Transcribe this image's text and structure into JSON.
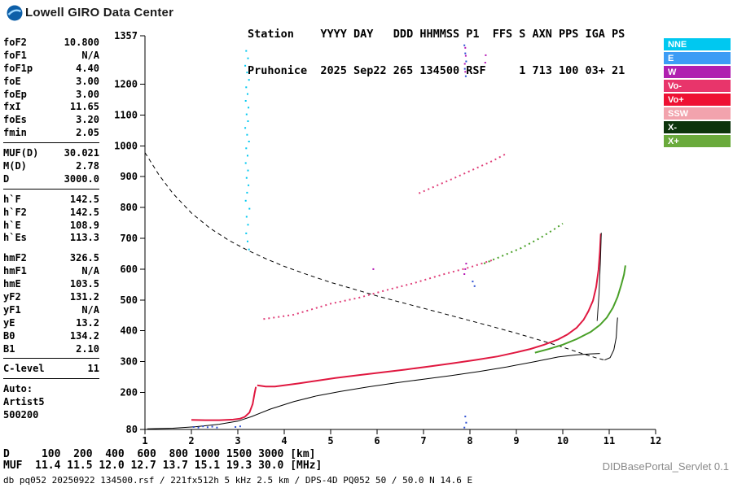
{
  "header": {
    "brand": "Lowell GIRO Data Center"
  },
  "station_block": {
    "line1": "Station    YYYY DAY   DDD HHMMSS P1  FFS S AXN PPS IGA PS",
    "line2": "Pruhonice  2025 Sep22 265 134500 RSF     1 713 100 03+ 21"
  },
  "parameters": {
    "rows": [
      {
        "label": "foF2",
        "value": "10.800"
      },
      {
        "label": "foF1",
        "value": "N/A"
      },
      {
        "label": "foF1p",
        "value": "4.40"
      },
      {
        "label": "foE",
        "value": "3.00"
      },
      {
        "label": "foEp",
        "value": "3.00"
      },
      {
        "label": "fxI",
        "value": "11.65"
      },
      {
        "label": "foEs",
        "value": "3.20"
      },
      {
        "label": "fmin",
        "value": "2.05"
      },
      {
        "sep": true
      },
      {
        "label": "MUF(D)",
        "value": "30.021"
      },
      {
        "label": "M(D)",
        "value": "2.78"
      },
      {
        "label": "D",
        "value": "3000.0"
      },
      {
        "sep": true
      },
      {
        "label": "h`F",
        "value": "142.5"
      },
      {
        "label": "h`F2",
        "value": "142.5"
      },
      {
        "label": "h`E",
        "value": "108.9"
      },
      {
        "label": "h`Es",
        "value": "113.3"
      },
      {
        "gap": true
      },
      {
        "label": "hmF2",
        "value": "326.5"
      },
      {
        "label": "hmF1",
        "value": "N/A"
      },
      {
        "label": "hmE",
        "value": "103.5"
      },
      {
        "label": "yF2",
        "value": "131.2"
      },
      {
        "label": "yF1",
        "value": "N/A"
      },
      {
        "label": "yE",
        "value": "13.2"
      },
      {
        "label": "B0",
        "value": "134.2"
      },
      {
        "label": "B1",
        "value": "2.10"
      },
      {
        "sep": true
      },
      {
        "label": "C-level",
        "value": "11"
      },
      {
        "sep": true
      },
      {
        "label": "Auto:",
        "value": ""
      },
      {
        "label": "Artist5",
        "value": ""
      },
      {
        "label": "500200",
        "value": ""
      }
    ]
  },
  "legend": {
    "items": [
      {
        "label": "NNE",
        "color": "#00c8f0"
      },
      {
        "label": "E",
        "color": "#3c9cf5"
      },
      {
        "label": "W",
        "color": "#b01fb0"
      },
      {
        "label": "Vo-",
        "color": "#e8356b"
      },
      {
        "label": "Vo+",
        "color": "#ee1133"
      },
      {
        "label": "SSW",
        "color": "#f2a3ad"
      },
      {
        "label": "X-",
        "color": "#0c340c"
      },
      {
        "label": "X+",
        "color": "#6aaa3c"
      }
    ]
  },
  "footer": {
    "d_line": "D     100  200  400  600  800 1000 1500 3000 [km]",
    "muf_line": "MUF  11.4 11.5 12.0 12.7 13.7 15.1 19.3 30.0 [MHz]",
    "source_line": "db pq052 20250922 134500.rsf / 221fx512h 5 kHz 2.5 km / DPS-4D PQ052 50 / 50.0 N 14.6 E",
    "servlet": "DIDBasePortal_Servlet 0.1"
  },
  "chart_data": {
    "type": "scatter",
    "title": "Pruhonice ionogram 2025 Sep22 134500",
    "x_unit": "MHz",
    "y_unit": "km",
    "xlim": [
      1,
      12
    ],
    "ylim": [
      80,
      1357
    ],
    "x_ticks": [
      1,
      2,
      3,
      4,
      5,
      6,
      7,
      8,
      9,
      10,
      11,
      12
    ],
    "y_ticks": [
      80,
      200,
      300,
      400,
      500,
      600,
      700,
      800,
      900,
      1000,
      1100,
      1200,
      1357
    ],
    "grid": false,
    "legend_position": "right",
    "lines": [
      {
        "name": "transmission-curve",
        "color": "#000000",
        "width": 1,
        "dash": "5 4",
        "points": [
          [
            1.0,
            978
          ],
          [
            1.3,
            906
          ],
          [
            1.6,
            846
          ],
          [
            2.0,
            782
          ],
          [
            2.4,
            733
          ],
          [
            2.8,
            694
          ],
          [
            3.2,
            662
          ],
          [
            3.6,
            634
          ],
          [
            4.0,
            609
          ],
          [
            4.5,
            582
          ],
          [
            5.0,
            557
          ],
          [
            5.5,
            535
          ],
          [
            6.0,
            513
          ],
          [
            6.5,
            493
          ],
          [
            7.0,
            473
          ],
          [
            7.5,
            453
          ],
          [
            8.0,
            433
          ],
          [
            8.5,
            413
          ],
          [
            9.0,
            392
          ],
          [
            9.5,
            370
          ],
          [
            10.0,
            347
          ],
          [
            10.4,
            327
          ],
          [
            10.7,
            313
          ],
          [
            10.9,
            305
          ]
        ]
      },
      {
        "name": "transmission-curve-tip",
        "color": "#000000",
        "width": 1,
        "points": [
          [
            10.9,
            305
          ],
          [
            11.02,
            313
          ],
          [
            11.1,
            338
          ],
          [
            11.15,
            378
          ],
          [
            11.17,
            425
          ],
          [
            11.18,
            443
          ]
        ]
      },
      {
        "name": "true-height-profile",
        "color": "#000000",
        "width": 1,
        "points": [
          [
            1.05,
            82
          ],
          [
            1.6,
            84
          ],
          [
            2.1,
            89
          ],
          [
            2.6,
            97
          ],
          [
            3.0,
            107
          ],
          [
            3.3,
            122
          ],
          [
            3.7,
            146
          ],
          [
            4.2,
            170
          ],
          [
            4.7,
            189
          ],
          [
            5.2,
            203
          ],
          [
            5.8,
            218
          ],
          [
            6.4,
            231
          ],
          [
            7.0,
            243
          ],
          [
            7.6,
            255
          ],
          [
            8.2,
            268
          ],
          [
            8.8,
            283
          ],
          [
            9.4,
            300
          ],
          [
            9.9,
            315
          ],
          [
            10.3,
            322
          ],
          [
            10.6,
            325
          ],
          [
            10.8,
            326.5
          ]
        ]
      },
      {
        "name": "o-trace-e-layer",
        "color": "#e01840",
        "width": 2,
        "points": [
          [
            2.0,
            111
          ],
          [
            2.3,
            110
          ],
          [
            2.6,
            110
          ],
          [
            2.9,
            112
          ],
          [
            3.05,
            115
          ],
          [
            3.15,
            121
          ],
          [
            3.25,
            135
          ],
          [
            3.32,
            162
          ],
          [
            3.36,
            196
          ],
          [
            3.39,
            218
          ]
        ]
      },
      {
        "name": "o-trace-f-layer",
        "color": "#e01840",
        "width": 2,
        "points": [
          [
            3.42,
            223
          ],
          [
            3.6,
            219
          ],
          [
            3.8,
            219
          ],
          [
            4.0,
            223
          ],
          [
            4.3,
            229
          ],
          [
            4.7,
            238
          ],
          [
            5.1,
            247
          ],
          [
            5.6,
            256
          ],
          [
            6.1,
            265
          ],
          [
            6.6,
            274
          ],
          [
            7.1,
            284
          ],
          [
            7.6,
            294
          ],
          [
            8.1,
            305
          ],
          [
            8.6,
            317
          ],
          [
            9.0,
            330
          ],
          [
            9.3,
            341
          ],
          [
            9.6,
            355
          ],
          [
            9.9,
            372
          ],
          [
            10.1,
            388
          ],
          [
            10.3,
            410
          ],
          [
            10.45,
            436
          ],
          [
            10.55,
            463
          ],
          [
            10.65,
            498
          ],
          [
            10.72,
            542
          ],
          [
            10.77,
            598
          ],
          [
            10.8,
            658
          ],
          [
            10.82,
            715
          ]
        ]
      },
      {
        "name": "x-minus-echo-line",
        "color": "#151515",
        "width": 1,
        "points": [
          [
            10.74,
            432
          ],
          [
            10.78,
            520
          ],
          [
            10.81,
            625
          ],
          [
            10.83,
            718
          ]
        ]
      },
      {
        "name": "x-trace",
        "color": "#49a028",
        "width": 2,
        "points": [
          [
            9.4,
            329
          ],
          [
            9.7,
            341
          ],
          [
            10.0,
            355
          ],
          [
            10.3,
            373
          ],
          [
            10.6,
            396
          ],
          [
            10.8,
            419
          ],
          [
            10.95,
            443
          ],
          [
            11.08,
            475
          ],
          [
            11.18,
            510
          ],
          [
            11.26,
            549
          ],
          [
            11.32,
            583
          ],
          [
            11.35,
            612
          ]
        ]
      },
      {
        "name": "second-hop-o-trace",
        "color": "#e0407a",
        "width": 2,
        "dash": "2 4",
        "points": [
          [
            3.55,
            438
          ],
          [
            4.2,
            452
          ],
          [
            5.0,
            488
          ],
          [
            5.6,
            507
          ],
          [
            6.2,
            532
          ],
          [
            6.8,
            555
          ],
          [
            7.4,
            582
          ],
          [
            8.0,
            606
          ],
          [
            8.5,
            630
          ]
        ]
      },
      {
        "name": "second-hop-x-trace",
        "color": "#49a028",
        "width": 2,
        "dash": "2 4",
        "points": [
          [
            8.3,
            618
          ],
          [
            8.7,
            643
          ],
          [
            9.1,
            668
          ],
          [
            9.5,
            700
          ],
          [
            9.8,
            728
          ],
          [
            10.0,
            748
          ]
        ]
      },
      {
        "name": "third-hop-o-trace",
        "color": "#e0407a",
        "width": 2,
        "dash": "2 4",
        "points": [
          [
            6.9,
            846
          ],
          [
            7.3,
            872
          ],
          [
            7.7,
            898
          ],
          [
            8.1,
            925
          ],
          [
            8.5,
            952
          ],
          [
            8.8,
            976
          ]
        ]
      }
    ],
    "scatter": [
      {
        "name": "spread-f-cyan",
        "color": "#00c8f0",
        "size": 2,
        "points": [
          [
            3.18,
            1308
          ],
          [
            3.22,
            1284
          ],
          [
            3.16,
            1260
          ],
          [
            3.2,
            1238
          ],
          [
            3.24,
            1214
          ],
          [
            3.18,
            1190
          ],
          [
            3.21,
            1168
          ],
          [
            3.17,
            1146
          ],
          [
            3.23,
            1124
          ],
          [
            3.19,
            1102
          ],
          [
            3.22,
            1080
          ],
          [
            3.16,
            1058
          ],
          [
            3.2,
            1036
          ],
          [
            3.24,
            1014
          ],
          [
            3.18,
            992
          ],
          [
            3.21,
            968
          ],
          [
            3.17,
            944
          ],
          [
            3.22,
            920
          ],
          [
            3.19,
            896
          ],
          [
            3.23,
            872
          ],
          [
            3.2,
            848
          ],
          [
            3.17,
            822
          ],
          [
            3.25,
            796
          ],
          [
            3.19,
            770
          ],
          [
            3.22,
            744
          ],
          [
            3.18,
            716
          ],
          [
            3.21,
            690
          ],
          [
            3.24,
            664
          ]
        ]
      },
      {
        "name": "interference-blue",
        "color": "#2d4fd2",
        "size": 2,
        "points": [
          [
            2.05,
            88
          ],
          [
            2.15,
            86
          ],
          [
            2.25,
            90
          ],
          [
            2.35,
            87
          ],
          [
            2.45,
            89
          ],
          [
            2.55,
            86
          ],
          [
            2.95,
            88
          ],
          [
            3.05,
            90
          ],
          [
            7.88,
            1326
          ],
          [
            7.9,
            1300
          ],
          [
            7.92,
            1274
          ],
          [
            7.89,
            1250
          ],
          [
            7.91,
            1226
          ],
          [
            7.9,
            122
          ],
          [
            7.92,
            102
          ],
          [
            7.88,
            86
          ],
          [
            8.06,
            560
          ],
          [
            8.1,
            545
          ]
        ]
      },
      {
        "name": "interference-magenta",
        "color": "#b414b4",
        "size": 2,
        "points": [
          [
            7.9,
            1318
          ],
          [
            7.91,
            1292
          ],
          [
            7.89,
            1266
          ],
          [
            7.9,
            1240
          ],
          [
            7.92,
            618
          ],
          [
            7.9,
            600
          ],
          [
            7.88,
            584
          ],
          [
            5.92,
            600
          ],
          [
            8.34,
            1294
          ],
          [
            8.33,
            1270
          ]
        ]
      }
    ]
  }
}
